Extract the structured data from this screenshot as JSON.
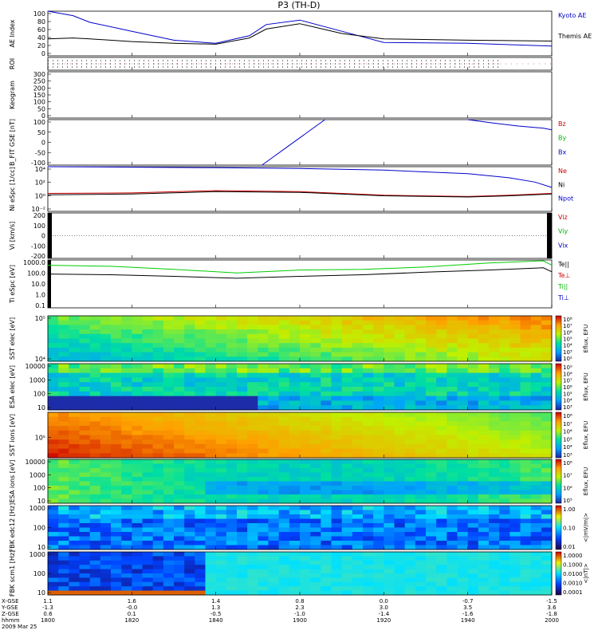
{
  "title": "P3 (TH-D)",
  "panels": [
    {
      "id": "ae",
      "ylabel": "AE Index",
      "ticks": [
        "100",
        "80",
        "60",
        "40",
        "20",
        "0"
      ],
      "right_labels": [
        {
          "text": "Kyoto AE",
          "color": "#0000cc"
        },
        {
          "text": "Themis AE",
          "color": "#000000"
        }
      ]
    },
    {
      "id": "roi",
      "ylabel": "ROI",
      "ticks": [],
      "right_labels": []
    },
    {
      "id": "keogram",
      "ylabel": "Keogram",
      "ticks": [
        "300",
        "250",
        "200",
        "150",
        "100",
        "50",
        "0"
      ],
      "right_labels": []
    },
    {
      "id": "bfit",
      "ylabel": "B_FIT GSE [nT]",
      "ticks": [
        "100",
        "50",
        "0",
        "-50",
        "-100"
      ],
      "right_labels": [
        {
          "text": "Bz",
          "color": "#cc0000"
        },
        {
          "text": "By",
          "color": "#00bb00"
        },
        {
          "text": "Bx",
          "color": "#0000cc"
        }
      ]
    },
    {
      "id": "ni",
      "ylabel": "Ni eSpc [1/cc]",
      "ticks": [
        "10⁴",
        "10²",
        "10⁰",
        "10⁻²"
      ],
      "right_labels": [
        {
          "text": "Ne",
          "color": "#cc0000"
        },
        {
          "text": "Ni",
          "color": "#000000"
        },
        {
          "text": "Npot",
          "color": "#0000cc"
        }
      ]
    },
    {
      "id": "vi",
      "ylabel": "Vi [km/s]",
      "ticks": [
        "200",
        "100",
        "0",
        "-100",
        "-200"
      ],
      "right_labels": [
        {
          "text": "Viz",
          "color": "#cc0000"
        },
        {
          "text": "Viy",
          "color": "#00bb00"
        },
        {
          "text": "Vix",
          "color": "#0000cc"
        }
      ]
    },
    {
      "id": "ti",
      "ylabel": "Ti eSpc [eV]",
      "ticks": [
        "1000.0",
        "100.0",
        "10.0",
        "1.0",
        "0.1"
      ],
      "right_labels": [
        {
          "text": "Te||",
          "color": "#000000"
        },
        {
          "text": "Te⊥",
          "color": "#cc0000"
        },
        {
          "text": "Ti||",
          "color": "#00bb00"
        },
        {
          "text": "Ti⊥",
          "color": "#0000cc"
        }
      ]
    },
    {
      "id": "sst_e",
      "ylabel": "SST elec [eV]",
      "ticks": [
        "10⁵",
        "10⁴"
      ],
      "cbar_title": "Eflux, EFU",
      "cbar_ticks": [
        "10⁸",
        "10⁷",
        "10⁶",
        "10⁵",
        "10⁴",
        "10³",
        "10²"
      ]
    },
    {
      "id": "esa_e",
      "ylabel": "ESA elec [eV]",
      "ticks": [
        "10000",
        "1000",
        "100",
        "10"
      ],
      "cbar_title": "Eflux, EFU",
      "cbar_ticks": [
        "10⁹",
        "10⁸",
        "10⁷",
        "10⁶",
        "10⁵",
        "10⁴",
        "10³"
      ]
    },
    {
      "id": "sst_i",
      "ylabel": "SST ions [eV]",
      "ticks": [
        "10⁵"
      ],
      "cbar_title": "Eflux, EFU",
      "cbar_ticks": [
        "10⁸",
        "10⁷",
        "10⁶",
        "10⁵",
        "10⁴",
        "10³"
      ]
    },
    {
      "id": "esa_i",
      "ylabel": "ESA ions [eV]",
      "ticks": [
        "10000",
        "1000",
        "100",
        "10"
      ],
      "cbar_title": "Eflux, EFU",
      "cbar_ticks": [
        "10⁸",
        "10⁷",
        "10⁶",
        "10⁵"
      ]
    },
    {
      "id": "fbk_e",
      "ylabel": "FBK edc12 [Hz]",
      "ticks": [
        "1000",
        "100",
        "10"
      ],
      "cbar_title": "<|mV/m|>",
      "cbar_ticks": [
        "1.00",
        "0.10",
        "0.01"
      ]
    },
    {
      "id": "fbk_b",
      "ylabel": "FBK scm1 [Hz]",
      "ticks": [
        "1000",
        "100",
        "10"
      ],
      "cbar_title": "<|nT|>",
      "cbar_ticks": [
        "1.0000",
        "0.1000",
        "0.0100",
        "0.0010",
        "0.0001"
      ]
    }
  ],
  "footer": {
    "row_labels": [
      "X-GSE",
      "Y-GSE",
      "Z-GSE",
      "hhmm",
      "2009 Mar 25"
    ],
    "columns": [
      {
        "x": "1.1",
        "y": "-1.3",
        "z": "0.6",
        "t": "1800"
      },
      {
        "x": "1.6",
        "y": "-0.0",
        "z": "0.1",
        "t": "1820"
      },
      {
        "x": "1.4",
        "y": "1.3",
        "z": "-0.5",
        "t": "1840"
      },
      {
        "x": "0.8",
        "y": "2.3",
        "z": "-1.0",
        "t": "1900"
      },
      {
        "x": "0.0",
        "y": "3.0",
        "z": "-1.4",
        "t": "1920"
      },
      {
        "x": "-0.7",
        "y": "3.5",
        "z": "-1.6",
        "t": "1940"
      },
      {
        "x": "-1.5",
        "y": "3.6",
        "z": "-1.8",
        "t": "2000"
      }
    ]
  },
  "chart_data": {
    "type": "line",
    "title": "P3 (TH-D)",
    "xlabel": "hhmm",
    "x": [
      "1800",
      "1820",
      "1840",
      "1900",
      "1920",
      "1940",
      "2000"
    ],
    "xlim": [
      "1800",
      "2000"
    ],
    "series": [
      {
        "name": "Kyoto AE",
        "panel": "ae",
        "color": "#0000cc",
        "x": [
          0,
          6,
          10,
          20,
          30,
          40,
          48,
          52,
          60,
          70,
          80,
          100,
          120
        ],
        "values": [
          100,
          90,
          75,
          55,
          35,
          28,
          45,
          70,
          80,
          55,
          30,
          28,
          22
        ]
      },
      {
        "name": "Themis AE",
        "panel": "ae",
        "color": "#000000",
        "x": [
          0,
          6,
          10,
          20,
          30,
          40,
          48,
          52,
          60,
          70,
          80,
          100,
          120
        ],
        "values": [
          38,
          40,
          38,
          32,
          28,
          26,
          40,
          60,
          72,
          50,
          38,
          35,
          33
        ]
      },
      {
        "name": "Bx",
        "panel": "bfit",
        "color": "#0000cc",
        "x": [
          51,
          54,
          57,
          60,
          63,
          66
        ],
        "values": [
          -100,
          -60,
          -20,
          20,
          60,
          100
        ]
      },
      {
        "name": "Bx",
        "panel": "bfit",
        "color": "#0000cc",
        "x": [
          100,
          106,
          112,
          118,
          120
        ],
        "values": [
          100,
          85,
          72,
          62,
          55
        ]
      },
      {
        "name": "Npot",
        "panel": "ni",
        "color": "#0000cc",
        "log": true,
        "x": [
          0,
          20,
          40,
          60,
          80,
          100,
          110,
          116,
          120
        ],
        "values": [
          30000,
          25000,
          20000,
          15000,
          8000,
          2000,
          400,
          80,
          10
        ]
      },
      {
        "name": "Ne",
        "panel": "ni",
        "color": "#cc0000",
        "log": true,
        "x": [
          0,
          20,
          40,
          60,
          80,
          100,
          110,
          120
        ],
        "values": [
          1,
          1.2,
          3,
          2,
          0.5,
          0.3,
          0.5,
          1
        ]
      },
      {
        "name": "Ni",
        "panel": "ni",
        "color": "#000000",
        "log": true,
        "x": [
          0,
          20,
          40,
          60,
          80,
          100,
          110,
          120
        ],
        "values": [
          0.6,
          0.8,
          2,
          1.5,
          0.4,
          0.25,
          0.4,
          0.8
        ]
      },
      {
        "name": "Ti||",
        "panel": "ti",
        "color": "#00cc00",
        "log": true,
        "x": [
          0,
          15,
          30,
          45,
          60,
          75,
          90,
          105,
          118,
          120
        ],
        "values": [
          900,
          700,
          350,
          150,
          300,
          350,
          600,
          1500,
          2500,
          900
        ]
      },
      {
        "name": "Te||",
        "panel": "ti",
        "color": "#000000",
        "log": true,
        "x": [
          0,
          15,
          30,
          45,
          60,
          75,
          90,
          105,
          118,
          120
        ],
        "values": [
          120,
          100,
          70,
          45,
          70,
          100,
          180,
          300,
          500,
          200
        ]
      }
    ],
    "heatmaps": [
      "SST elec",
      "ESA elec",
      "SST ions",
      "ESA ions",
      "FBK edc12",
      "FBK scm1"
    ],
    "grid": false,
    "legend": "right"
  }
}
